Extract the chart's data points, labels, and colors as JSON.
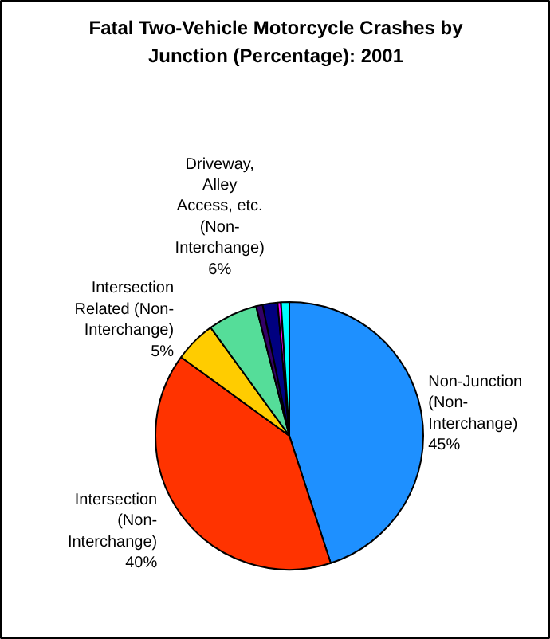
{
  "chart_data": {
    "type": "pie",
    "title": "Fatal Two-Vehicle Motorcycle Crashes by Junction (Percentage): 2001",
    "categories": [
      "Non-Junction\n(Non-\nInterchange)",
      "Intersection\n(Non-\nInterchange)",
      "Intersection\nRelated (Non-\nInterchange)",
      "Driveway,\nAlley\nAccess, etc.\n(Non-\nInterchange)",
      null,
      null,
      null,
      null
    ],
    "values": [
      45,
      40,
      5,
      6,
      0.8,
      1.8,
      0.4,
      1.0
    ],
    "value_labels": [
      "45%",
      "40%",
      "5%",
      "6%",
      null,
      null,
      null,
      null
    ],
    "colors": [
      "#1e90ff",
      "#ff3300",
      "#ffcc00",
      "#55dd99",
      "#330066",
      "#000080",
      "#ff00ff",
      "#00ffff"
    ]
  }
}
